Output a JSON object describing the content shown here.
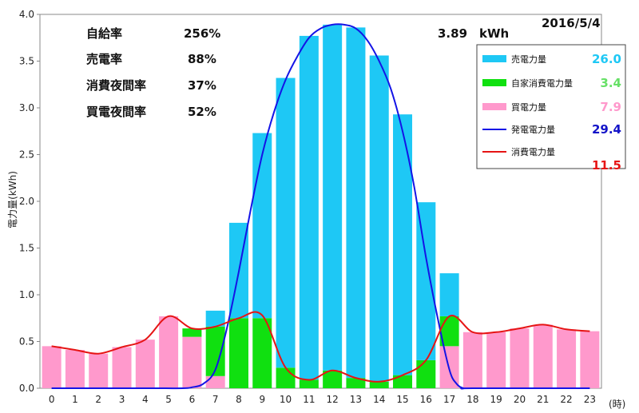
{
  "chart_data": {
    "type": "bar",
    "xlabel": "(時)",
    "ylabel": "電力量(kWh)",
    "ylim": [
      0,
      4.0
    ],
    "yticks": [
      "0.0",
      "0.5",
      "1.0",
      "1.5",
      "2.0",
      "2.5",
      "3.0",
      "3.5",
      "4.0"
    ],
    "categories": [
      "0",
      "1",
      "2",
      "3",
      "4",
      "5",
      "6",
      "7",
      "8",
      "9",
      "10",
      "11",
      "12",
      "13",
      "14",
      "15",
      "16",
      "17",
      "18",
      "19",
      "20",
      "21",
      "22",
      "23"
    ],
    "grid": false,
    "legend_position": "top-right",
    "date": "2016/5/4",
    "peak_label": "3.89　kWh",
    "stats": [
      {
        "label": "自給率",
        "value": "256%"
      },
      {
        "label": "売電率",
        "value": "88%"
      },
      {
        "label": "消費夜間率",
        "value": "37%"
      },
      {
        "label": "買電夜間率",
        "value": "52%"
      }
    ],
    "series": [
      {
        "name": "売電力量",
        "kind": "bar",
        "color": "#1ec8f5",
        "total": "26.0",
        "values": [
          0,
          0,
          0,
          0,
          0,
          0,
          0,
          0.17,
          1.02,
          1.98,
          3.1,
          3.68,
          3.7,
          3.75,
          3.49,
          2.79,
          1.69,
          0.46,
          0,
          0,
          0,
          0,
          0,
          0
        ]
      },
      {
        "name": "自家消費電力量",
        "kind": "bar",
        "color": "#10e010",
        "total": "3.4",
        "values": [
          0,
          0,
          0,
          0,
          0,
          0,
          0.09,
          0.53,
          0.75,
          0.75,
          0.22,
          0.09,
          0.19,
          0.11,
          0.07,
          0.14,
          0.3,
          0.32,
          0,
          0,
          0,
          0,
          0,
          0
        ]
      },
      {
        "name": "買電力量",
        "kind": "bar",
        "color": "#ff99cc",
        "total": "7.9",
        "values": [
          0.45,
          0.41,
          0.37,
          0.44,
          0.52,
          0.77,
          0.55,
          0.13,
          0,
          0,
          0,
          0,
          0,
          0,
          0,
          0,
          0,
          0.45,
          0.6,
          0.6,
          0.64,
          0.68,
          0.63,
          0.61
        ]
      },
      {
        "name": "発電電力量",
        "kind": "line",
        "color": "#1414e6",
        "total": "29.4",
        "values": [
          0,
          0,
          0,
          0,
          0,
          0,
          0,
          0.2,
          1.6,
          2.7,
          3.32,
          3.69,
          3.88,
          3.87,
          3.57,
          2.93,
          2.0,
          0.8,
          0,
          0,
          0,
          0,
          0,
          0
        ],
        "curve_x": [
          0,
          4,
          5.6,
          6,
          6.5,
          7,
          7.5,
          8,
          8.5,
          9,
          9.5,
          10,
          10.5,
          11,
          11.5,
          12,
          12.5,
          13,
          13.5,
          14,
          14.5,
          15,
          15.5,
          16,
          16.5,
          17,
          17.3,
          17.6,
          18,
          23
        ],
        "curve_y": [
          0,
          0,
          0,
          0.01,
          0.05,
          0.2,
          0.65,
          1.25,
          1.9,
          2.5,
          2.95,
          3.3,
          3.55,
          3.75,
          3.85,
          3.89,
          3.89,
          3.85,
          3.72,
          3.5,
          3.2,
          2.75,
          2.15,
          1.4,
          0.75,
          0.2,
          0.05,
          0,
          0,
          0
        ]
      },
      {
        "name": "消費電力量",
        "kind": "line",
        "color": "#e61414",
        "total": "11.5",
        "values": [
          0.45,
          0.41,
          0.37,
          0.44,
          0.52,
          0.77,
          0.64,
          0.66,
          0.75,
          0.78,
          0.22,
          0.09,
          0.19,
          0.11,
          0.07,
          0.14,
          0.3,
          0.77,
          0.6,
          0.6,
          0.64,
          0.68,
          0.63,
          0.61
        ]
      }
    ]
  }
}
